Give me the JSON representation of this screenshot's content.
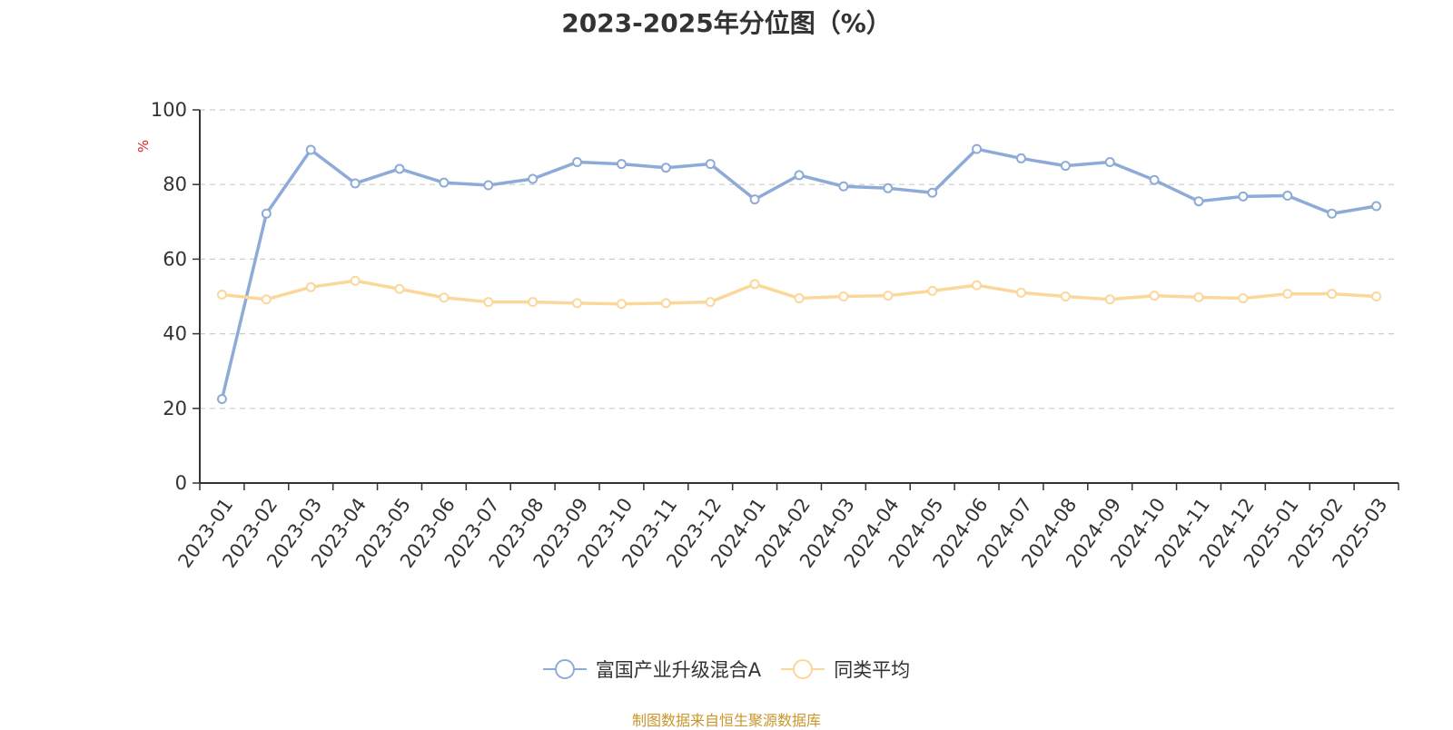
{
  "chart_data": {
    "type": "line",
    "title": "2023-2025年分位图（%）",
    "ylabel": "%",
    "ylim": [
      0,
      100
    ],
    "yticks": [
      0,
      20,
      40,
      60,
      80,
      100
    ],
    "grid": true,
    "legend_position": "bottom",
    "categories": [
      "2023-01",
      "2023-02",
      "2023-03",
      "2023-04",
      "2023-05",
      "2023-06",
      "2023-07",
      "2023-08",
      "2023-09",
      "2023-10",
      "2023-11",
      "2023-12",
      "2024-01",
      "2024-02",
      "2024-03",
      "2024-04",
      "2024-05",
      "2024-06",
      "2024-07",
      "2024-08",
      "2024-09",
      "2024-10",
      "2024-11",
      "2024-12",
      "2025-01",
      "2025-02",
      "2025-03"
    ],
    "series": [
      {
        "name": "富国产业升级混合A",
        "color": "#8eabd8",
        "values": [
          22.5,
          72.2,
          89.3,
          80.3,
          84.2,
          80.5,
          79.8,
          81.5,
          86.0,
          85.5,
          84.5,
          85.5,
          76.0,
          82.5,
          79.5,
          79.0,
          77.8,
          89.5,
          87.0,
          85.0,
          86.0,
          81.2,
          75.5,
          76.8,
          77.0,
          72.2,
          74.2
        ]
      },
      {
        "name": "同类平均",
        "color": "#fbd89a",
        "values": [
          50.5,
          49.2,
          52.5,
          54.2,
          52.0,
          49.7,
          48.5,
          48.5,
          48.2,
          48.0,
          48.2,
          48.5,
          53.3,
          49.5,
          50.0,
          50.2,
          51.5,
          53.0,
          51.0,
          50.0,
          49.2,
          50.2,
          49.8,
          49.5,
          50.7,
          50.7,
          50.0
        ]
      }
    ]
  },
  "source_note": "制图数据来自恒生聚源数据库"
}
